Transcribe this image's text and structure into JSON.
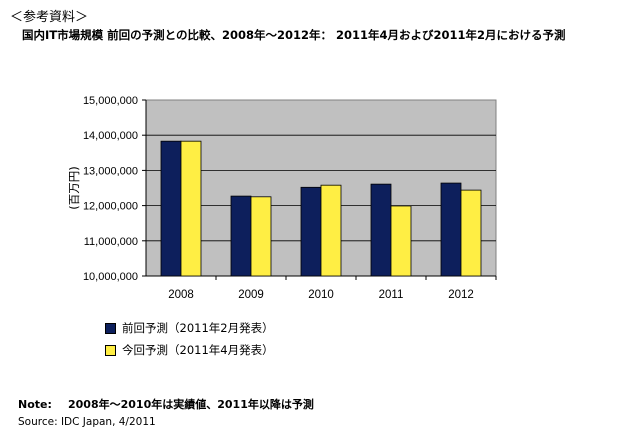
{
  "header": {
    "ref_label": "＜参考資料＞",
    "title": "国内IT市場規模 前回の予測との比較、2008年～2012年： 2011年4月および2011年2月における予測"
  },
  "chart_data": {
    "type": "bar",
    "categories": [
      "2008",
      "2009",
      "2010",
      "2011",
      "2012"
    ],
    "series": [
      {
        "name": "前回予測（2011年2月発表）",
        "color": "#0d1f5c",
        "values": [
          13830000,
          12270000,
          12520000,
          12610000,
          12640000
        ]
      },
      {
        "name": "今回予測（2011年4月発表）",
        "color": "#ffee44",
        "values": [
          13830000,
          12250000,
          12580000,
          11990000,
          12440000
        ]
      }
    ],
    "ylabel": "(百万円)",
    "ylim": [
      10000000,
      15000000
    ],
    "yticks": [
      "10,000,000",
      "11,000,000",
      "12,000,000",
      "13,000,000",
      "14,000,000",
      "15,000,000"
    ],
    "grid": true,
    "plot_background": "#c0c0c0"
  },
  "footer": {
    "note_label": "Note:",
    "note_text": "2008年～2010年は実績値、2011年以降は予測",
    "source": "Source: IDC Japan, 4/2011"
  }
}
